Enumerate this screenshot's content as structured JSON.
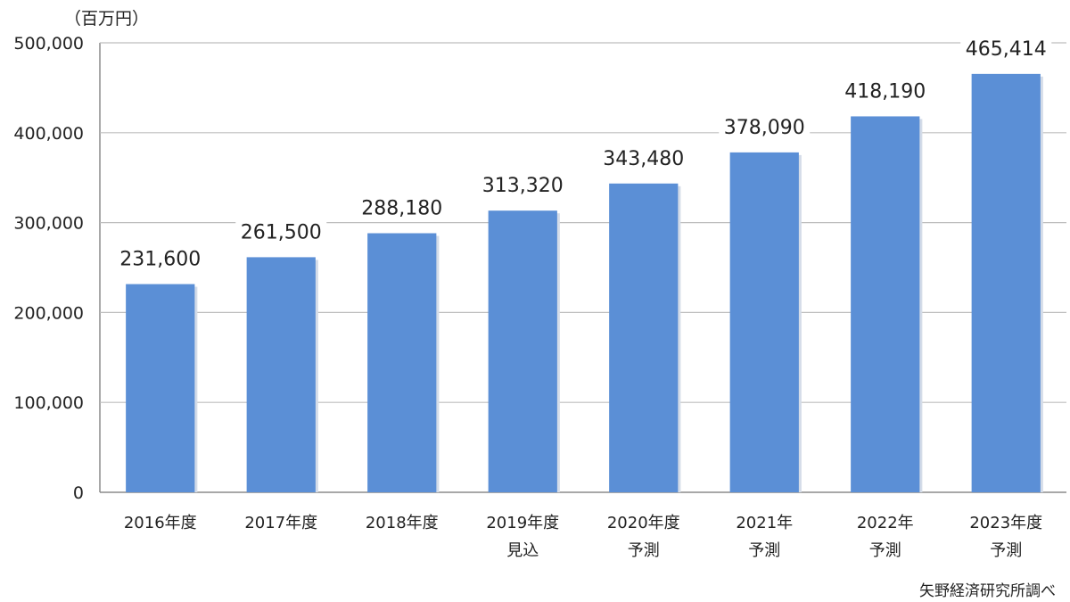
{
  "unit_label": "（百万円）",
  "source": "矢野経済研究所調べ",
  "colors": {
    "bar": "#5B8FD6",
    "grid": "#BDBDBD",
    "axis": "#8C8C8C"
  },
  "chart_data": {
    "type": "bar",
    "title": "",
    "xlabel": "",
    "ylabel": "（百万円）",
    "ylim": [
      0,
      500000
    ],
    "yticks": [
      0,
      100000,
      200000,
      300000,
      400000,
      500000
    ],
    "ytick_labels": [
      "0",
      "100,000",
      "200,000",
      "300,000",
      "400,000",
      "500,000"
    ],
    "grid": true,
    "categories": [
      [
        "2016年度"
      ],
      [
        "2017年度"
      ],
      [
        "2018年度"
      ],
      [
        "2019年度",
        "見込"
      ],
      [
        "2020年度",
        "予測"
      ],
      [
        "2021年",
        "予測"
      ],
      [
        "2022年",
        "予測"
      ],
      [
        "2023年度",
        "予測"
      ]
    ],
    "values": [
      231600,
      261500,
      288180,
      313320,
      343480,
      378090,
      418190,
      465414
    ],
    "value_labels": [
      "231,600",
      "261,500",
      "288,180",
      "313,320",
      "343,480",
      "378,090",
      "418,190",
      "465,414"
    ]
  }
}
